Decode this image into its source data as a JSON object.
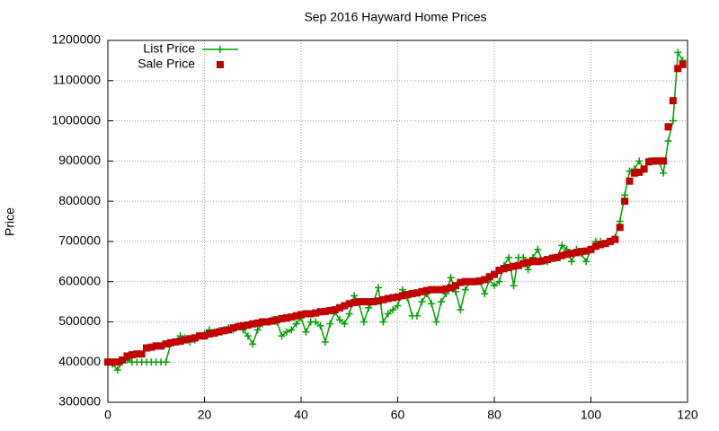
{
  "chart_data": {
    "type": "scatter",
    "title": "Sep 2016 Hayward Home Prices",
    "y_label": "Price",
    "x": [
      0,
      1,
      2,
      3,
      4,
      5,
      6,
      7,
      8,
      9,
      10,
      11,
      12,
      13,
      14,
      15,
      16,
      17,
      18,
      19,
      20,
      21,
      22,
      23,
      24,
      25,
      26,
      27,
      28,
      29,
      30,
      31,
      32,
      33,
      34,
      35,
      36,
      37,
      38,
      39,
      40,
      41,
      42,
      43,
      44,
      45,
      46,
      47,
      48,
      49,
      50,
      51,
      52,
      53,
      54,
      55,
      56,
      57,
      58,
      59,
      60,
      61,
      62,
      63,
      64,
      65,
      66,
      67,
      68,
      69,
      70,
      71,
      72,
      73,
      74,
      75,
      76,
      77,
      78,
      79,
      80,
      81,
      82,
      83,
      84,
      85,
      86,
      87,
      88,
      89,
      90,
      91,
      92,
      93,
      94,
      95,
      96,
      97,
      98,
      99,
      100,
      101,
      102,
      103,
      104,
      105,
      106,
      107,
      108,
      109,
      110,
      111,
      112,
      113,
      114,
      115,
      116,
      117,
      118,
      119
    ],
    "series": [
      {
        "name": "List Price",
        "color": "#00a000",
        "marker": "plus",
        "line": true,
        "values": [
          400000,
          395000,
          380000,
          400000,
          405000,
          400000,
          400000,
          400000,
          400000,
          400000,
          400000,
          400000,
          400000,
          445000,
          450000,
          465000,
          460000,
          450000,
          455000,
          465000,
          470000,
          480000,
          475000,
          478000,
          480000,
          485000,
          480000,
          490000,
          480000,
          465000,
          445000,
          480000,
          495000,
          500000,
          505000,
          500000,
          465000,
          475000,
          480000,
          495000,
          510000,
          475000,
          500000,
          500000,
          490000,
          450000,
          495000,
          525000,
          505000,
          495000,
          520000,
          565000,
          545000,
          500000,
          535000,
          550000,
          585000,
          500000,
          520000,
          530000,
          540000,
          580000,
          560000,
          515000,
          515000,
          550000,
          570000,
          545000,
          500000,
          550000,
          570000,
          610000,
          575000,
          530000,
          580000,
          600000,
          600000,
          600000,
          570000,
          605000,
          590000,
          600000,
          640000,
          660000,
          590000,
          660000,
          660000,
          630000,
          660000,
          680000,
          650000,
          650000,
          660000,
          660000,
          690000,
          680000,
          650000,
          680000,
          670000,
          650000,
          680000,
          700000,
          700000,
          695000,
          700000,
          710000,
          750000,
          815000,
          875000,
          880000,
          900000,
          880000,
          900000,
          900000,
          900000,
          870000,
          950000,
          1000000,
          1170000,
          1150000
        ]
      },
      {
        "name": "Sale Price",
        "color": "#c00000",
        "marker": "square",
        "line": false,
        "values": [
          400000,
          400000,
          400000,
          405000,
          415000,
          418000,
          420000,
          420000,
          435000,
          437000,
          440000,
          440000,
          445000,
          448000,
          450000,
          452000,
          455000,
          458000,
          460000,
          465000,
          465000,
          470000,
          472000,
          475000,
          478000,
          480000,
          485000,
          488000,
          490000,
          492000,
          495000,
          497000,
          500000,
          500000,
          502000,
          505000,
          508000,
          510000,
          512000,
          515000,
          518000,
          520000,
          520000,
          522000,
          525000,
          526000,
          528000,
          530000,
          535000,
          540000,
          545000,
          548000,
          550000,
          550000,
          550000,
          550000,
          552000,
          555000,
          558000,
          560000,
          562000,
          565000,
          568000,
          570000,
          572000,
          575000,
          578000,
          580000,
          580000,
          580000,
          582000,
          585000,
          590000,
          598000,
          600000,
          600000,
          600000,
          602000,
          605000,
          612000,
          618000,
          628000,
          632000,
          635000,
          638000,
          640000,
          645000,
          648000,
          650000,
          650000,
          652000,
          655000,
          658000,
          660000,
          665000,
          668000,
          670000,
          672000,
          675000,
          676000,
          680000,
          688000,
          692000,
          695000,
          700000,
          705000,
          735000,
          800000,
          850000,
          870000,
          872000,
          880000,
          898000,
          900000,
          900000,
          900000,
          985000,
          1050000,
          1130000,
          1140000
        ]
      }
    ],
    "xlim": [
      0,
      120
    ],
    "xticks": [
      0,
      20,
      40,
      60,
      80,
      100,
      120
    ],
    "ylim": [
      300000,
      1200000
    ],
    "yticks": [
      300000,
      400000,
      500000,
      600000,
      700000,
      800000,
      900000,
      1000000,
      1100000,
      1200000
    ],
    "grid": true,
    "legend": "top-left"
  }
}
